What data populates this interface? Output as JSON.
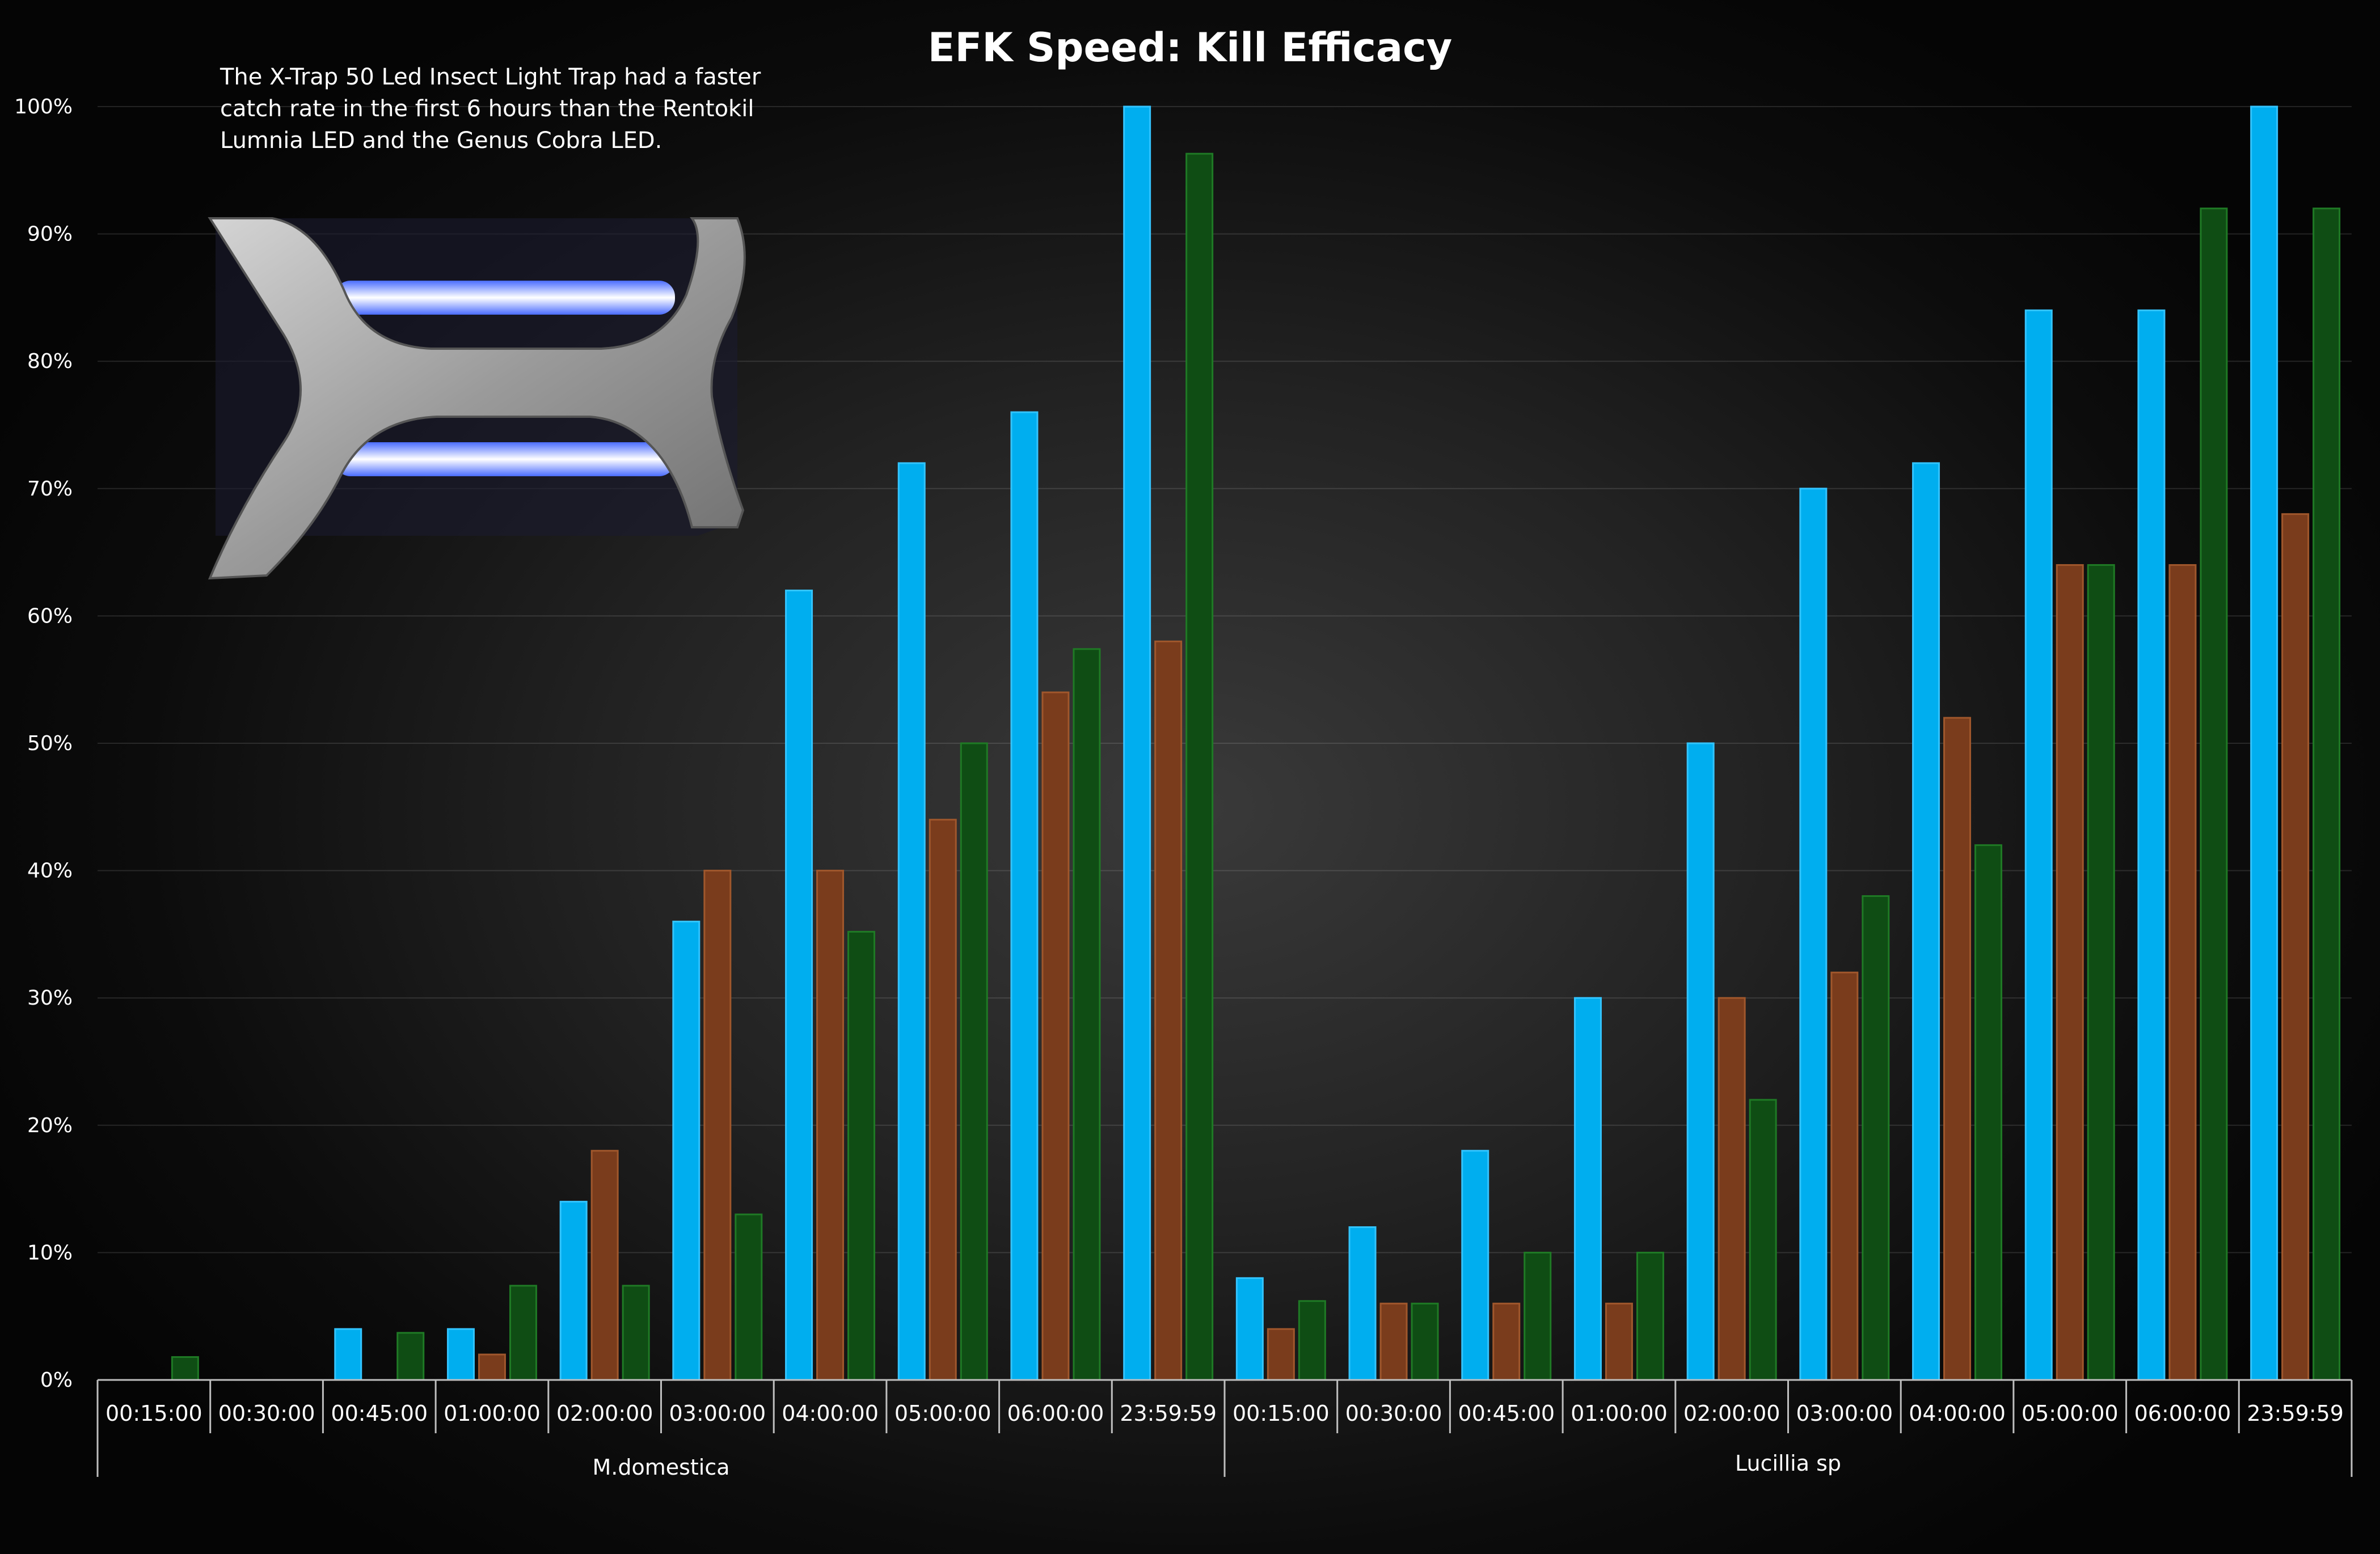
{
  "chart_data": {
    "type": "bar",
    "title": "EFK Speed: Kill Efficacy",
    "annotation": "The X-Trap 50 Led Insect Light Trap had a faster catch rate in the first 6 hours than the Rentokil Lumnia LED and the Genus Cobra LED.",
    "y_ticks": [
      "0%",
      "10%",
      "20%",
      "30%",
      "40%",
      "50%",
      "60%",
      "70%",
      "80%",
      "90%",
      "100%"
    ],
    "ylim": [
      0,
      100
    ],
    "grid": true,
    "legend_position": "bottom-center",
    "groups": [
      {
        "name": "M.domestica",
        "categories": [
          "00:15:00",
          "00:30:00",
          "00:45:00",
          "01:00:00",
          "02:00:00",
          "03:00:00",
          "04:00:00",
          "05:00:00",
          "06:00:00",
          "23:59:59"
        ]
      },
      {
        "name": "Lucillia sp",
        "categories": [
          "00:15:00",
          "00:30:00",
          "00:45:00",
          "01:00:00",
          "02:00:00",
          "03:00:00",
          "04:00:00",
          "05:00:00",
          "06:00:00",
          "23:59:59"
        ]
      }
    ],
    "series": [
      {
        "name": "Xtrap",
        "color": "#00aeef",
        "values": [
          0,
          0,
          4,
          4,
          14,
          36,
          62,
          72,
          76,
          100,
          8,
          12,
          18,
          30,
          50,
          70,
          72,
          84,
          84,
          100
        ]
      },
      {
        "name": "Lumnia",
        "color": "#7a3c1c",
        "values": [
          0,
          0,
          0,
          2,
          18,
          40,
          40,
          44,
          54,
          58,
          4,
          6,
          6,
          6,
          30,
          32,
          52,
          64,
          64,
          68
        ]
      },
      {
        "name": "Cobra",
        "color": "#0f4d14",
        "values": [
          1.8,
          0,
          3.7,
          7.4,
          7.4,
          13,
          35.2,
          50,
          57.4,
          96.3,
          6.2,
          6,
          10,
          10,
          22,
          38,
          42,
          64,
          92,
          92
        ]
      }
    ]
  }
}
